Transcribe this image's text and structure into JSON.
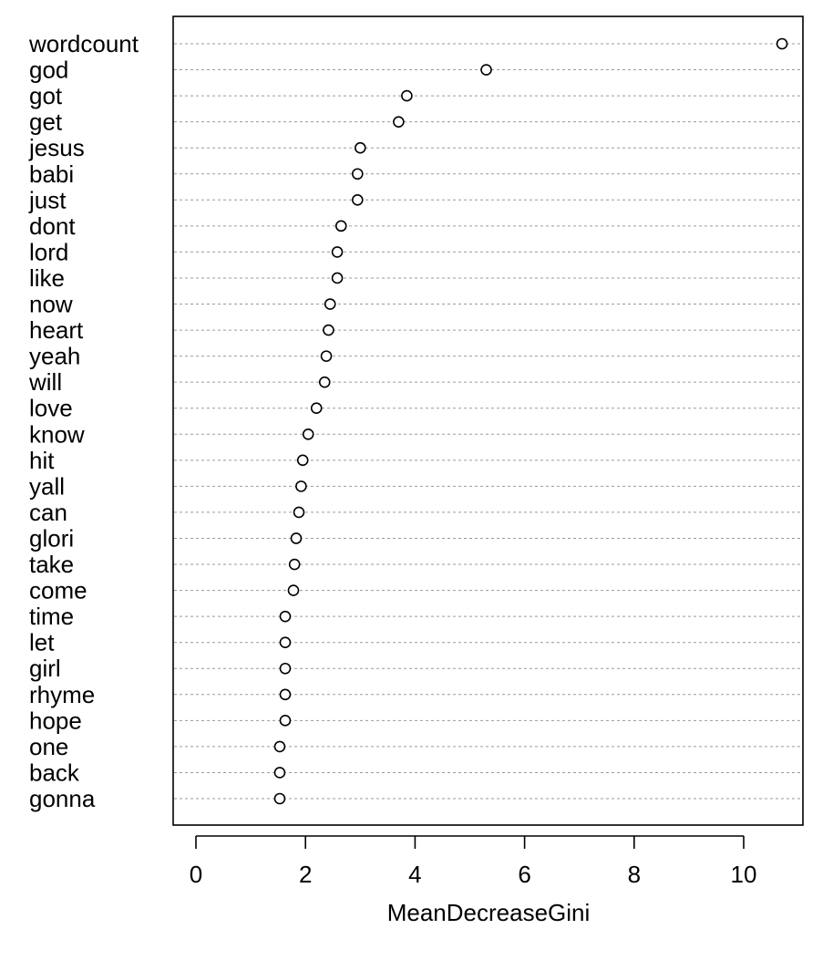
{
  "chart_data": {
    "type": "scatter",
    "chart_style": "dotchart",
    "xlabel": "MeanDecreaseGini",
    "ylabel": "",
    "title": "",
    "xlim": [
      0,
      11
    ],
    "xticks": [
      0,
      2,
      4,
      6,
      8,
      10
    ],
    "grid": "dashed horizontal lines per category",
    "categories": [
      "wordcount",
      "god",
      "got",
      "get",
      "jesus",
      "babi",
      "just",
      "dont",
      "lord",
      "like",
      "now",
      "heart",
      "yeah",
      "will",
      "love",
      "know",
      "hit",
      "yall",
      "can",
      "glori",
      "take",
      "come",
      "time",
      "let",
      "girl",
      "rhyme",
      "hope",
      "one",
      "back",
      "gonna"
    ],
    "values": [
      10.7,
      5.3,
      3.85,
      3.7,
      3.0,
      2.95,
      2.95,
      2.65,
      2.58,
      2.58,
      2.45,
      2.42,
      2.38,
      2.35,
      2.2,
      2.05,
      1.95,
      1.92,
      1.88,
      1.83,
      1.8,
      1.78,
      1.63,
      1.63,
      1.63,
      1.63,
      1.63,
      1.53,
      1.53,
      1.53
    ]
  }
}
